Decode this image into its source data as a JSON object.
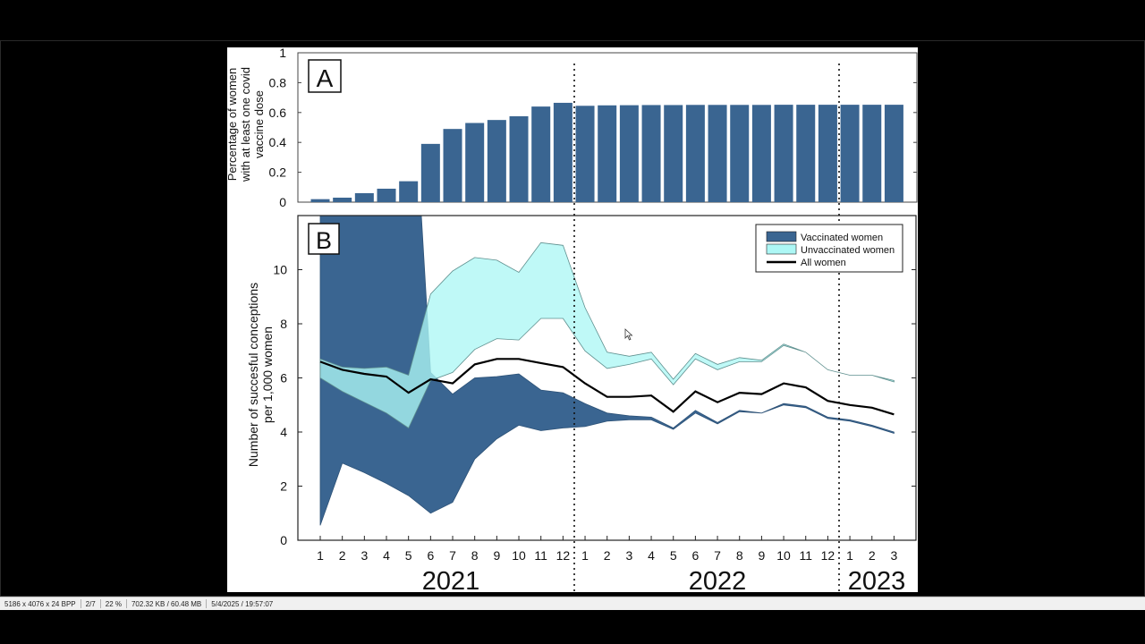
{
  "statusbar": {
    "dimensions": "5186 x 4076 x 24 BPP",
    "page": "2/7",
    "zoom": "22 %",
    "filesize": "702.32 KB / 60.48 MB",
    "datetime": "5/4/2025 / 19:57:07"
  },
  "chart_data": [
    {
      "panel_label": "A",
      "type": "bar",
      "ylabel_lines": [
        "Percentage of women",
        "with at least one covid",
        "vaccine dose"
      ],
      "ylim": [
        0,
        1
      ],
      "yticks": [
        0,
        0.2,
        0.4,
        0.6,
        0.8,
        1
      ],
      "ytick_labels": [
        "0",
        "0.2",
        "0.4",
        "0.6",
        "0.8",
        "1"
      ],
      "categories": [
        "2021-1",
        "2021-2",
        "2021-3",
        "2021-4",
        "2021-5",
        "2021-6",
        "2021-7",
        "2021-8",
        "2021-9",
        "2021-10",
        "2021-11",
        "2021-12",
        "2022-1",
        "2022-2",
        "2022-3",
        "2022-4",
        "2022-5",
        "2022-6",
        "2022-7",
        "2022-8",
        "2022-9",
        "2022-10",
        "2022-11",
        "2022-12",
        "2023-1",
        "2023-2",
        "2023-3"
      ],
      "values": [
        0.02,
        0.03,
        0.06,
        0.09,
        0.14,
        0.39,
        0.49,
        0.53,
        0.55,
        0.575,
        0.64,
        0.665,
        0.645,
        0.648,
        0.649,
        0.65,
        0.65,
        0.651,
        0.651,
        0.651,
        0.651,
        0.652,
        0.652,
        0.652,
        0.652,
        0.652,
        0.652
      ],
      "colors": {
        "bar": "#3a6591"
      }
    },
    {
      "panel_label": "B",
      "type": "area",
      "ylabel_lines": [
        "Number of succesful conceptions",
        "per 1,000 women"
      ],
      "ylim": [
        0,
        12
      ],
      "yticks": [
        0,
        2,
        4,
        6,
        8,
        10
      ],
      "ytick_labels": [
        "0",
        "2",
        "4",
        "6",
        "8",
        "10"
      ],
      "x_month_labels": [
        "1",
        "2",
        "3",
        "4",
        "5",
        "6",
        "7",
        "8",
        "9",
        "10",
        "11",
        "12",
        "1",
        "2",
        "3",
        "4",
        "5",
        "6",
        "7",
        "8",
        "9",
        "10",
        "11",
        "12",
        "1",
        "2",
        "3"
      ],
      "year_labels": [
        "2021",
        "2022",
        "2023"
      ],
      "legend": {
        "placement": "top-right",
        "entries": [
          "Vaccinated women",
          "Unvaccinated women",
          "All women"
        ]
      },
      "series": [
        {
          "name": "Vaccinated women",
          "color": "#3a6591",
          "lower": [
            0.55,
            2.85,
            2.5,
            2.1,
            1.65,
            1.0,
            1.4,
            3.0,
            3.75,
            4.25,
            4.05,
            4.15,
            4.2,
            4.4,
            4.45,
            4.45,
            4.1,
            4.7,
            4.3,
            4.75,
            4.7,
            5.0,
            4.9,
            4.5,
            4.4,
            4.2,
            3.95
          ],
          "upper": [
            20,
            20,
            20,
            20,
            20,
            6.2,
            5.4,
            6.0,
            6.05,
            6.15,
            5.55,
            5.45,
            5.05,
            4.7,
            4.6,
            4.55,
            4.15,
            4.8,
            4.35,
            4.8,
            4.7,
            5.05,
            4.95,
            4.55,
            4.45,
            4.25,
            4.0
          ]
        },
        {
          "name": "Unvaccinated women",
          "color": "#adf7f5",
          "lower": [
            6.0,
            5.5,
            5.1,
            4.7,
            4.15,
            5.9,
            6.2,
            7.05,
            7.45,
            7.4,
            8.2,
            8.2,
            7.0,
            6.35,
            6.5,
            6.7,
            5.75,
            6.7,
            6.3,
            6.6,
            6.6,
            7.2,
            6.95,
            6.3,
            6.1,
            6.1,
            5.85
          ],
          "upper": [
            6.7,
            6.4,
            6.35,
            6.4,
            6.1,
            9.1,
            9.95,
            10.45,
            10.35,
            9.9,
            11.0,
            10.9,
            8.6,
            6.95,
            6.8,
            6.95,
            5.95,
            6.9,
            6.5,
            6.75,
            6.65,
            7.25,
            6.95,
            6.3,
            6.1,
            6.1,
            5.9
          ]
        },
        {
          "name": "All women",
          "color": "#000000",
          "values": [
            6.6,
            6.3,
            6.15,
            6.05,
            5.45,
            5.95,
            5.8,
            6.5,
            6.7,
            6.7,
            6.55,
            6.4,
            5.8,
            5.3,
            5.3,
            5.35,
            4.75,
            5.5,
            5.1,
            5.45,
            5.4,
            5.8,
            5.65,
            5.15,
            5.0,
            4.9,
            4.65
          ]
        }
      ],
      "dividers": [
        "between 2021-12 and 2022-1",
        "between 2022-12 and 2023-1"
      ]
    }
  ]
}
